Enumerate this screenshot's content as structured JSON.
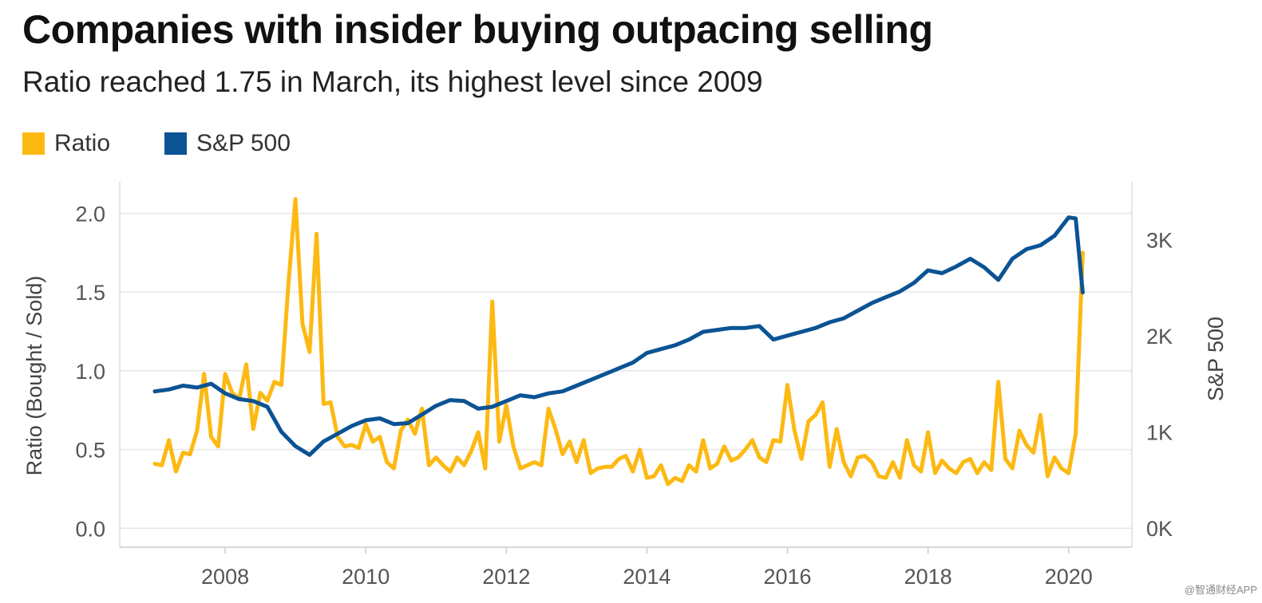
{
  "header": {
    "title": "Companies with insider buying outpacing selling",
    "subtitle": "Ratio reached 1.75 in March, its highest level since 2009"
  },
  "legend": [
    {
      "label": "Ratio",
      "color": "#FDB913"
    },
    {
      "label": "S&P 500",
      "color": "#0B5394"
    }
  ],
  "watermark": "@智通财经APP",
  "chart_data": {
    "type": "line",
    "title": "Companies with insider buying outpacing selling",
    "subtitle": "Ratio reached 1.75 in March, its highest level since 2009",
    "xlabel": "",
    "ylabel": "Ratio (Bought / Sold)",
    "y2label": "S&P 500",
    "xlim": [
      2006.5,
      2020.9
    ],
    "ylim": [
      -0.12,
      2.2
    ],
    "y2lim": [
      -200,
      3600
    ],
    "x_ticks": [
      {
        "value": 2008,
        "label": "2008"
      },
      {
        "value": 2010,
        "label": "2010"
      },
      {
        "value": 2012,
        "label": "2012"
      },
      {
        "value": 2014,
        "label": "2014"
      },
      {
        "value": 2016,
        "label": "2016"
      },
      {
        "value": 2018,
        "label": "2018"
      },
      {
        "value": 2020,
        "label": "2020"
      }
    ],
    "y_ticks": [
      {
        "value": 0.0,
        "label": "0.0"
      },
      {
        "value": 0.5,
        "label": "0.5"
      },
      {
        "value": 1.0,
        "label": "1.0"
      },
      {
        "value": 1.5,
        "label": "1.5"
      },
      {
        "value": 2.0,
        "label": "2.0"
      }
    ],
    "y2_ticks": [
      {
        "value": 0,
        "label": "0K"
      },
      {
        "value": 1000,
        "label": "1K"
      },
      {
        "value": 2000,
        "label": "2K"
      },
      {
        "value": 3000,
        "label": "3K"
      }
    ],
    "grid": true,
    "legend_position": "top-left",
    "series": [
      {
        "name": "Ratio",
        "axis": "left",
        "color": "#FDB913",
        "x": [
          2007.0,
          2007.1,
          2007.2,
          2007.3,
          2007.4,
          2007.5,
          2007.6,
          2007.7,
          2007.8,
          2007.9,
          2008.0,
          2008.1,
          2008.2,
          2008.3,
          2008.4,
          2008.5,
          2008.6,
          2008.7,
          2008.8,
          2008.9,
          2009.0,
          2009.1,
          2009.2,
          2009.3,
          2009.4,
          2009.5,
          2009.6,
          2009.7,
          2009.8,
          2009.9,
          2010.0,
          2010.1,
          2010.2,
          2010.3,
          2010.4,
          2010.5,
          2010.6,
          2010.7,
          2010.8,
          2010.9,
          2011.0,
          2011.1,
          2011.2,
          2011.3,
          2011.4,
          2011.5,
          2011.6,
          2011.7,
          2011.8,
          2011.9,
          2012.0,
          2012.1,
          2012.2,
          2012.3,
          2012.4,
          2012.5,
          2012.6,
          2012.7,
          2012.8,
          2012.9,
          2013.0,
          2013.1,
          2013.2,
          2013.3,
          2013.4,
          2013.5,
          2013.6,
          2013.7,
          2013.8,
          2013.9,
          2014.0,
          2014.1,
          2014.2,
          2014.3,
          2014.4,
          2014.5,
          2014.6,
          2014.7,
          2014.8,
          2014.9,
          2015.0,
          2015.1,
          2015.2,
          2015.3,
          2015.4,
          2015.5,
          2015.6,
          2015.7,
          2015.8,
          2015.9,
          2016.0,
          2016.1,
          2016.2,
          2016.3,
          2016.4,
          2016.5,
          2016.6,
          2016.7,
          2016.8,
          2016.9,
          2017.0,
          2017.1,
          2017.2,
          2017.3,
          2017.4,
          2017.5,
          2017.6,
          2017.7,
          2017.8,
          2017.9,
          2018.0,
          2018.1,
          2018.2,
          2018.3,
          2018.4,
          2018.5,
          2018.6,
          2018.7,
          2018.8,
          2018.9,
          2019.0,
          2019.1,
          2019.2,
          2019.3,
          2019.4,
          2019.5,
          2019.6,
          2019.7,
          2019.8,
          2019.9,
          2020.0,
          2020.1,
          2020.2
        ],
        "values": [
          0.41,
          0.4,
          0.56,
          0.36,
          0.48,
          0.47,
          0.62,
          0.98,
          0.58,
          0.52,
          0.98,
          0.86,
          0.82,
          1.04,
          0.63,
          0.86,
          0.81,
          0.93,
          0.91,
          1.55,
          2.09,
          1.3,
          1.12,
          1.87,
          0.79,
          0.8,
          0.58,
          0.52,
          0.53,
          0.51,
          0.66,
          0.55,
          0.58,
          0.42,
          0.38,
          0.62,
          0.69,
          0.6,
          0.76,
          0.4,
          0.45,
          0.4,
          0.36,
          0.45,
          0.4,
          0.49,
          0.61,
          0.38,
          1.44,
          0.55,
          0.78,
          0.52,
          0.38,
          0.4,
          0.42,
          0.4,
          0.76,
          0.63,
          0.47,
          0.55,
          0.42,
          0.56,
          0.35,
          0.38,
          0.39,
          0.39,
          0.44,
          0.46,
          0.36,
          0.5,
          0.32,
          0.33,
          0.4,
          0.28,
          0.32,
          0.3,
          0.4,
          0.36,
          0.56,
          0.38,
          0.41,
          0.52,
          0.43,
          0.45,
          0.5,
          0.56,
          0.45,
          0.42,
          0.56,
          0.55,
          0.91,
          0.62,
          0.44,
          0.68,
          0.72,
          0.8,
          0.39,
          0.63,
          0.42,
          0.33,
          0.45,
          0.46,
          0.42,
          0.33,
          0.32,
          0.42,
          0.32,
          0.56,
          0.4,
          0.36,
          0.61,
          0.35,
          0.43,
          0.38,
          0.35,
          0.42,
          0.44,
          0.35,
          0.42,
          0.37,
          0.93,
          0.44,
          0.38,
          0.62,
          0.53,
          0.48,
          0.72,
          0.33,
          0.45,
          0.38,
          0.35,
          0.6,
          1.75
        ]
      },
      {
        "name": "S&P 500",
        "axis": "right",
        "color": "#0B5394",
        "x": [
          2007.0,
          2007.2,
          2007.4,
          2007.6,
          2007.8,
          2008.0,
          2008.2,
          2008.4,
          2008.6,
          2008.8,
          2009.0,
          2009.2,
          2009.4,
          2009.6,
          2009.8,
          2010.0,
          2010.2,
          2010.4,
          2010.6,
          2010.8,
          2011.0,
          2011.2,
          2011.4,
          2011.6,
          2011.8,
          2012.0,
          2012.2,
          2012.4,
          2012.6,
          2012.8,
          2013.0,
          2013.2,
          2013.4,
          2013.6,
          2013.8,
          2014.0,
          2014.2,
          2014.4,
          2014.6,
          2014.8,
          2015.0,
          2015.2,
          2015.4,
          2015.6,
          2015.8,
          2016.0,
          2016.2,
          2016.4,
          2016.6,
          2016.8,
          2017.0,
          2017.2,
          2017.4,
          2017.6,
          2017.8,
          2018.0,
          2018.2,
          2018.4,
          2018.6,
          2018.8,
          2019.0,
          2019.2,
          2019.4,
          2019.6,
          2019.8,
          2020.0,
          2020.1,
          2020.2
        ],
        "values": [
          1420,
          1440,
          1480,
          1460,
          1500,
          1400,
          1340,
          1320,
          1260,
          1000,
          850,
          760,
          900,
          980,
          1060,
          1120,
          1140,
          1080,
          1090,
          1180,
          1270,
          1330,
          1320,
          1240,
          1260,
          1320,
          1380,
          1360,
          1400,
          1420,
          1480,
          1540,
          1600,
          1660,
          1720,
          1820,
          1860,
          1900,
          1960,
          2040,
          2060,
          2080,
          2080,
          2100,
          1960,
          2000,
          2040,
          2080,
          2140,
          2180,
          2260,
          2340,
          2400,
          2460,
          2550,
          2680,
          2650,
          2720,
          2800,
          2710,
          2580,
          2800,
          2900,
          2940,
          3040,
          3230,
          3220,
          2450
        ]
      }
    ]
  }
}
